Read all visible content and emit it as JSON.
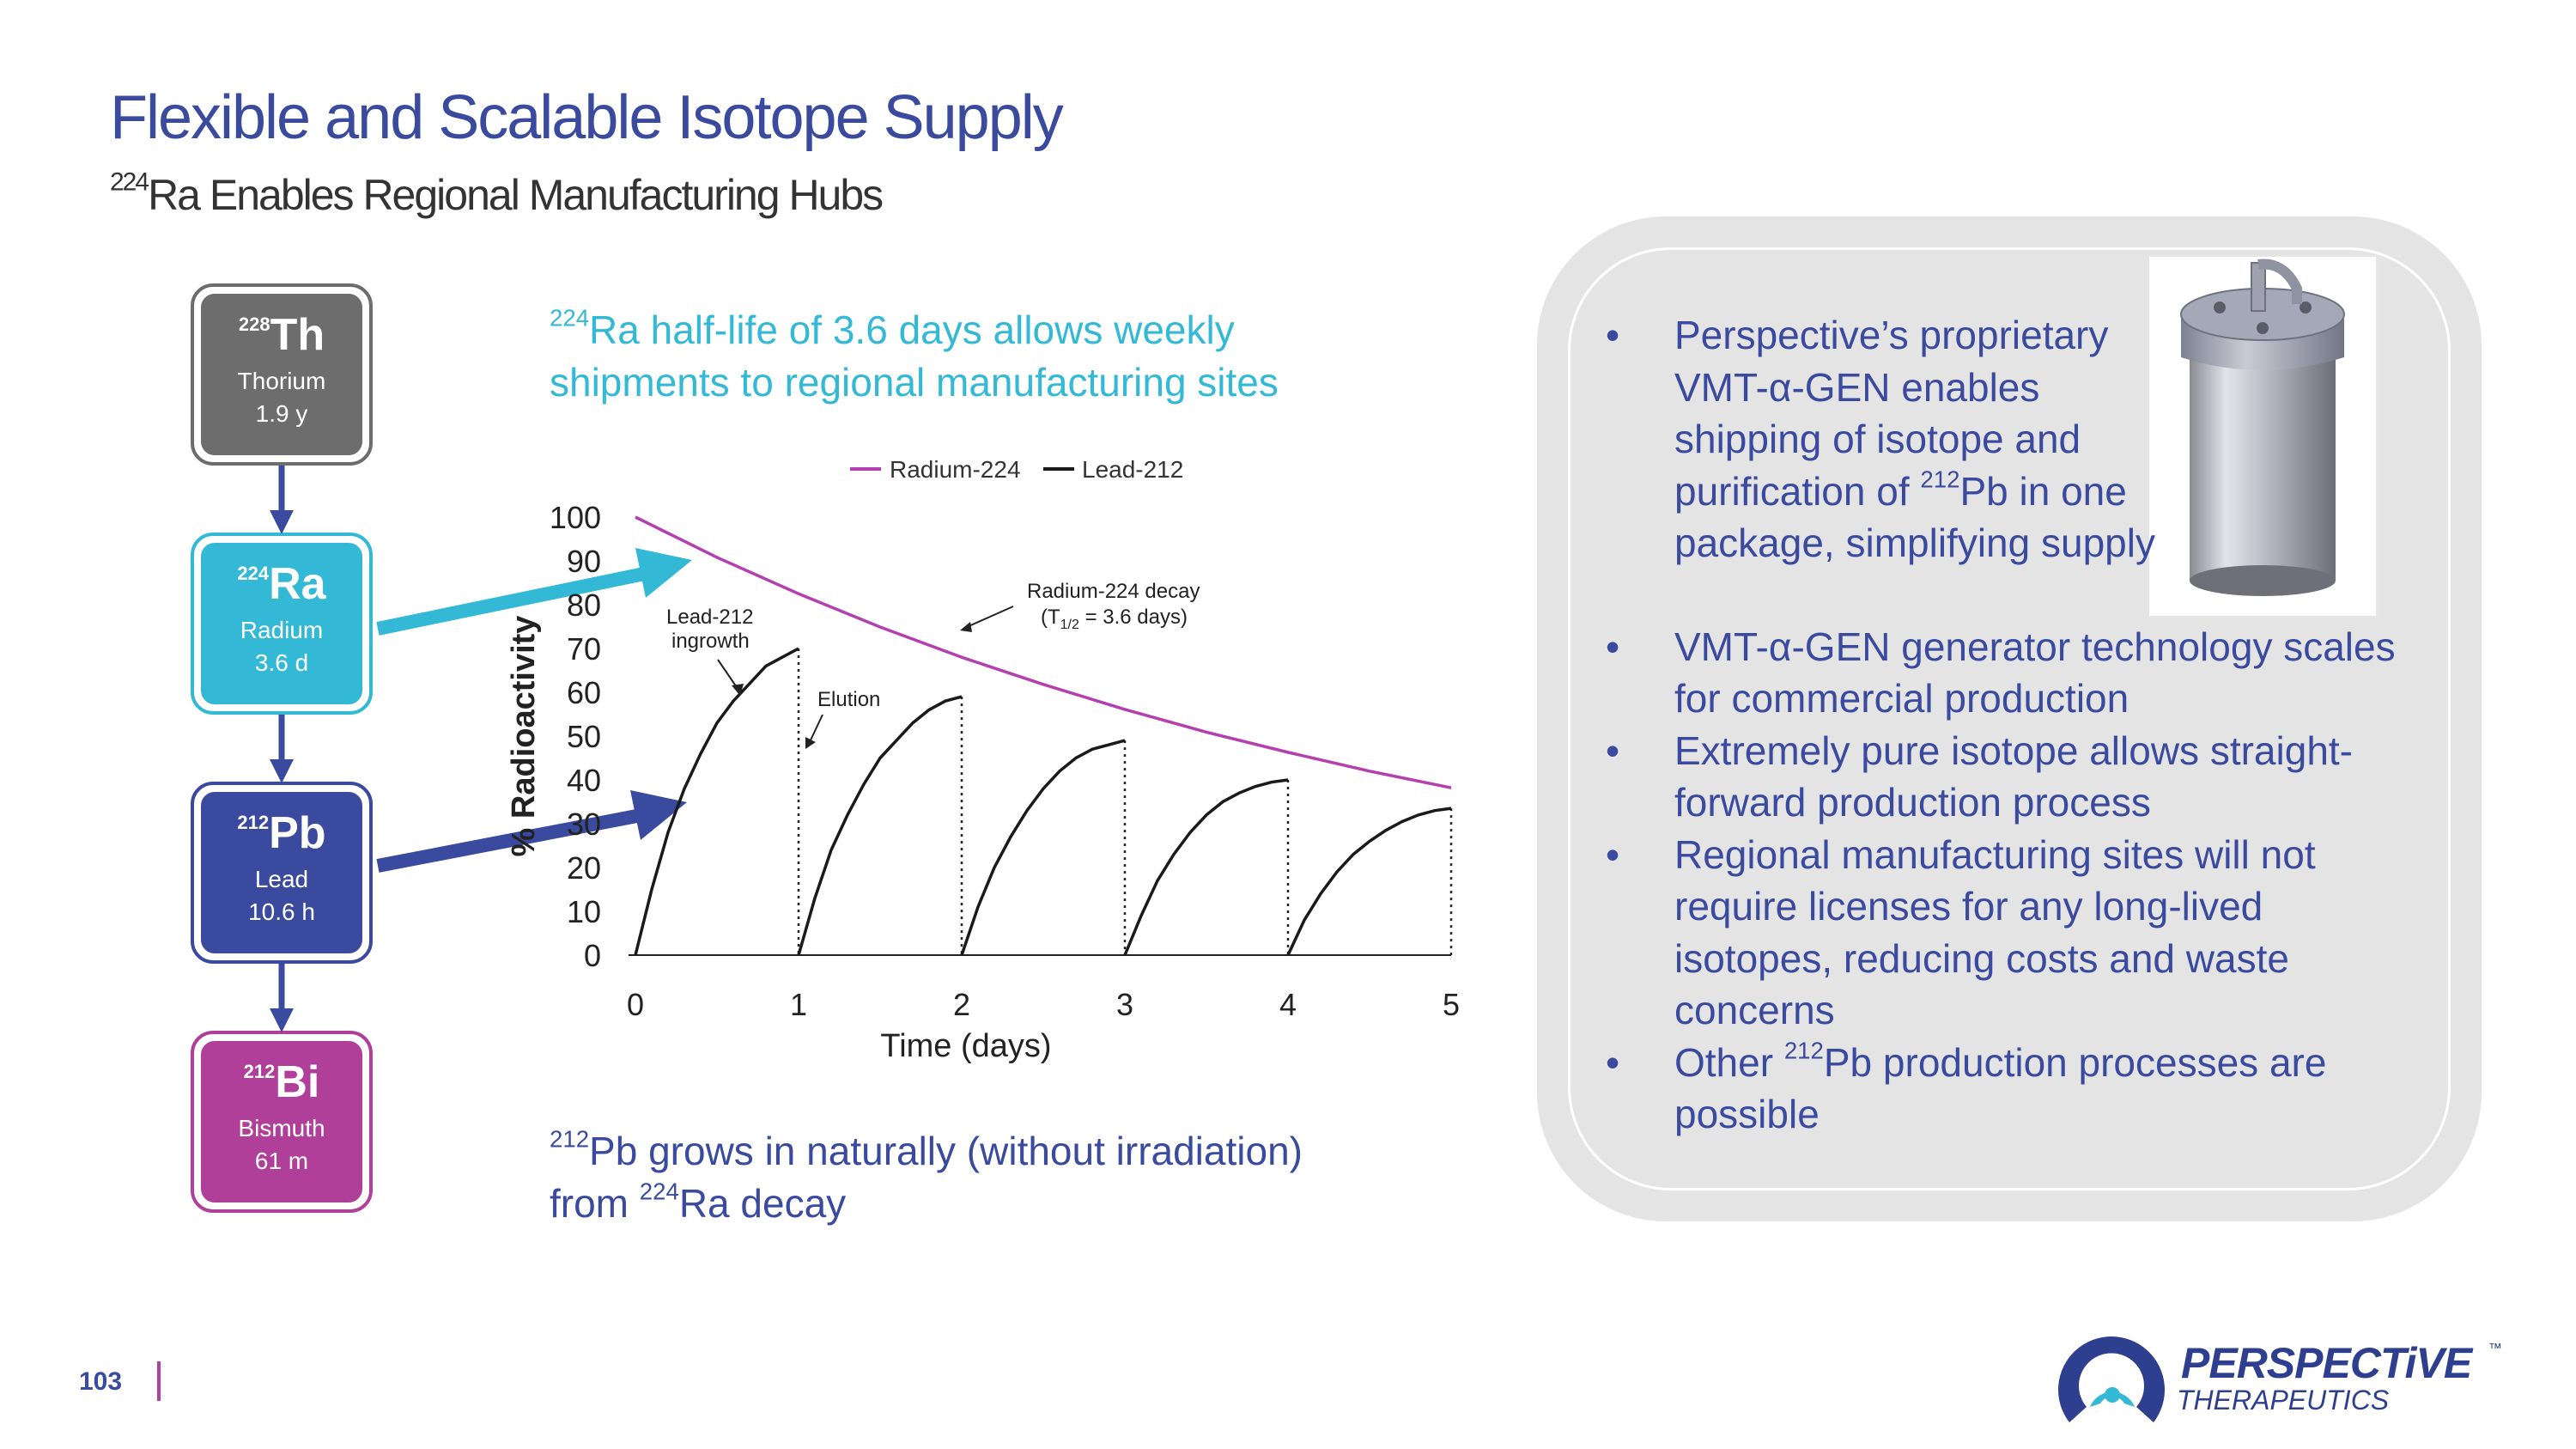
{
  "slide": {
    "title": "Flexible and Scalable Isotope Supply",
    "subtitle_sup": "224",
    "subtitle_rest": "Ra Enables Regional Manufacturing Hubs",
    "page_number": "103"
  },
  "decay_chain": [
    {
      "mass": "228",
      "symbol": "Th",
      "name": "Thorium",
      "half_life": "1.9 y",
      "color": "#6d6d6d"
    },
    {
      "mass": "224",
      "symbol": "Ra",
      "name": "Radium",
      "half_life": "3.6 d",
      "color": "#33b9d6"
    },
    {
      "mass": "212",
      "symbol": "Pb",
      "name": "Lead",
      "half_life": "10.6 h",
      "color": "#3a4a9f"
    },
    {
      "mass": "212",
      "symbol": "Bi",
      "name": "Bismuth",
      "half_life": "61 m",
      "color": "#b03f9a"
    }
  ],
  "callouts": {
    "top_sup": "224",
    "top_line1": "Ra half-life of 3.6 days allows weekly",
    "top_line2": "shipments to regional manufacturing sites",
    "bottom_sup1": "212",
    "bottom_line1": "Pb grows in naturally (without irradiation)",
    "bottom_pre2": "from ",
    "bottom_sup2": "224",
    "bottom_post2": "Ra decay"
  },
  "chart_data": {
    "type": "line",
    "xlabel": "Time (days)",
    "ylabel": "% Radioactivity",
    "xlim": [
      0,
      5
    ],
    "ylim": [
      0,
      100
    ],
    "x_ticks": [
      "0",
      "1",
      "2",
      "3",
      "4",
      "5"
    ],
    "y_ticks": [
      "0",
      "10",
      "20",
      "30",
      "40",
      "50",
      "60",
      "70",
      "80",
      "90",
      "100"
    ],
    "legend": [
      "Radium-224",
      "Lead-212"
    ],
    "legend_position": "top",
    "series": [
      {
        "name": "Radium-224",
        "color": "#b43fae",
        "x": [
          0,
          0.5,
          1,
          1.5,
          2,
          2.5,
          3,
          3.5,
          4,
          4.5,
          5
        ],
        "y": [
          100,
          90.8,
          82.5,
          74.9,
          68.0,
          61.8,
          56.1,
          50.9,
          46.3,
          42.0,
          38.2
        ]
      },
      {
        "name": "Lead-212",
        "color": "#1a1a1a",
        "segments": [
          {
            "x": [
              0,
              0.1,
              0.2,
              0.3,
              0.4,
              0.5,
              0.6,
              0.7,
              0.8,
              0.9,
              1.0
            ],
            "y": [
              0,
              15,
              28,
              38,
              46,
              53,
              58,
              62,
              66,
              68,
              70
            ]
          },
          {
            "x": [
              1,
              1.1,
              1.2,
              1.3,
              1.4,
              1.5,
              1.6,
              1.7,
              1.8,
              1.9,
              2.0
            ],
            "y": [
              0,
              13,
              24,
              32,
              39,
              45,
              49,
              53,
              56,
              58,
              59
            ]
          },
          {
            "x": [
              2,
              2.1,
              2.2,
              2.3,
              2.4,
              2.5,
              2.6,
              2.7,
              2.8,
              2.9,
              3.0
            ],
            "y": [
              0,
              11,
              20,
              27,
              33,
              38,
              42,
              45,
              47,
              48,
              49
            ]
          },
          {
            "x": [
              3,
              3.1,
              3.2,
              3.3,
              3.4,
              3.5,
              3.6,
              3.7,
              3.8,
              3.9,
              4.0
            ],
            "y": [
              0,
              9,
              17,
              23,
              28,
              32,
              35,
              37,
              38.5,
              39.5,
              40
            ]
          },
          {
            "x": [
              4,
              4.1,
              4.2,
              4.3,
              4.4,
              4.5,
              4.6,
              4.7,
              4.8,
              4.9,
              5.0
            ],
            "y": [
              0,
              8,
              14,
              19,
              23,
              26,
              28.5,
              30.5,
              32,
              33,
              33.5
            ]
          }
        ]
      }
    ],
    "annotations": {
      "ingrowth_line1": "Lead-212",
      "ingrowth_line2": "ingrowth",
      "decay_line1": "Radium-224 decay",
      "decay_line2": "(T",
      "decay_sub": "1/2",
      "decay_line2_end": " = 3.6 days)",
      "elution": "Elution"
    }
  },
  "bullets": [
    {
      "text": "Perspective’s proprietary VMT-α-GEN enables shipping of isotope and purification of ",
      "sup": "212",
      "after": "Pb in one package, simplifying supply"
    },
    {
      "text": "VMT-α-GEN generator technology scales for commercial production"
    },
    {
      "text": "Extremely pure isotope allows straight-forward production process"
    },
    {
      "text": "Regional manufacturing sites will not require licenses for any long-lived isotopes, reducing costs and waste concerns"
    },
    {
      "text": "Other ",
      "sup": "212",
      "after": "Pb production processes are possible"
    }
  ],
  "bullet_lines": {
    "b1": [
      "Perspective’s proprietary",
      "VMT-α-GEN enables",
      "shipping of isotope and",
      "purification of ",
      "Pb in one",
      "package, simplifying supply"
    ],
    "b2": [
      "VMT-α-GEN generator technology scales",
      "for commercial production"
    ],
    "b3": [
      "Extremely pure isotope allows straight-",
      "forward production process"
    ],
    "b4": [
      "Regional manufacturing sites will not",
      "require licenses for any long-lived",
      "isotopes, reducing costs and waste",
      "concerns"
    ],
    "b5_pre": "Other ",
    "b5_sup": "212",
    "b5_post": "Pb production processes are",
    "b5_line2": "possible"
  },
  "logo": {
    "name": "PERSPECTiVE",
    "tagline": "THERAPEUTICS",
    "tm": "™"
  },
  "colors": {
    "navy": "#3a4a9f",
    "teal": "#33b9d6",
    "magenta": "#b43fae",
    "panel": "#e4e4e4"
  }
}
